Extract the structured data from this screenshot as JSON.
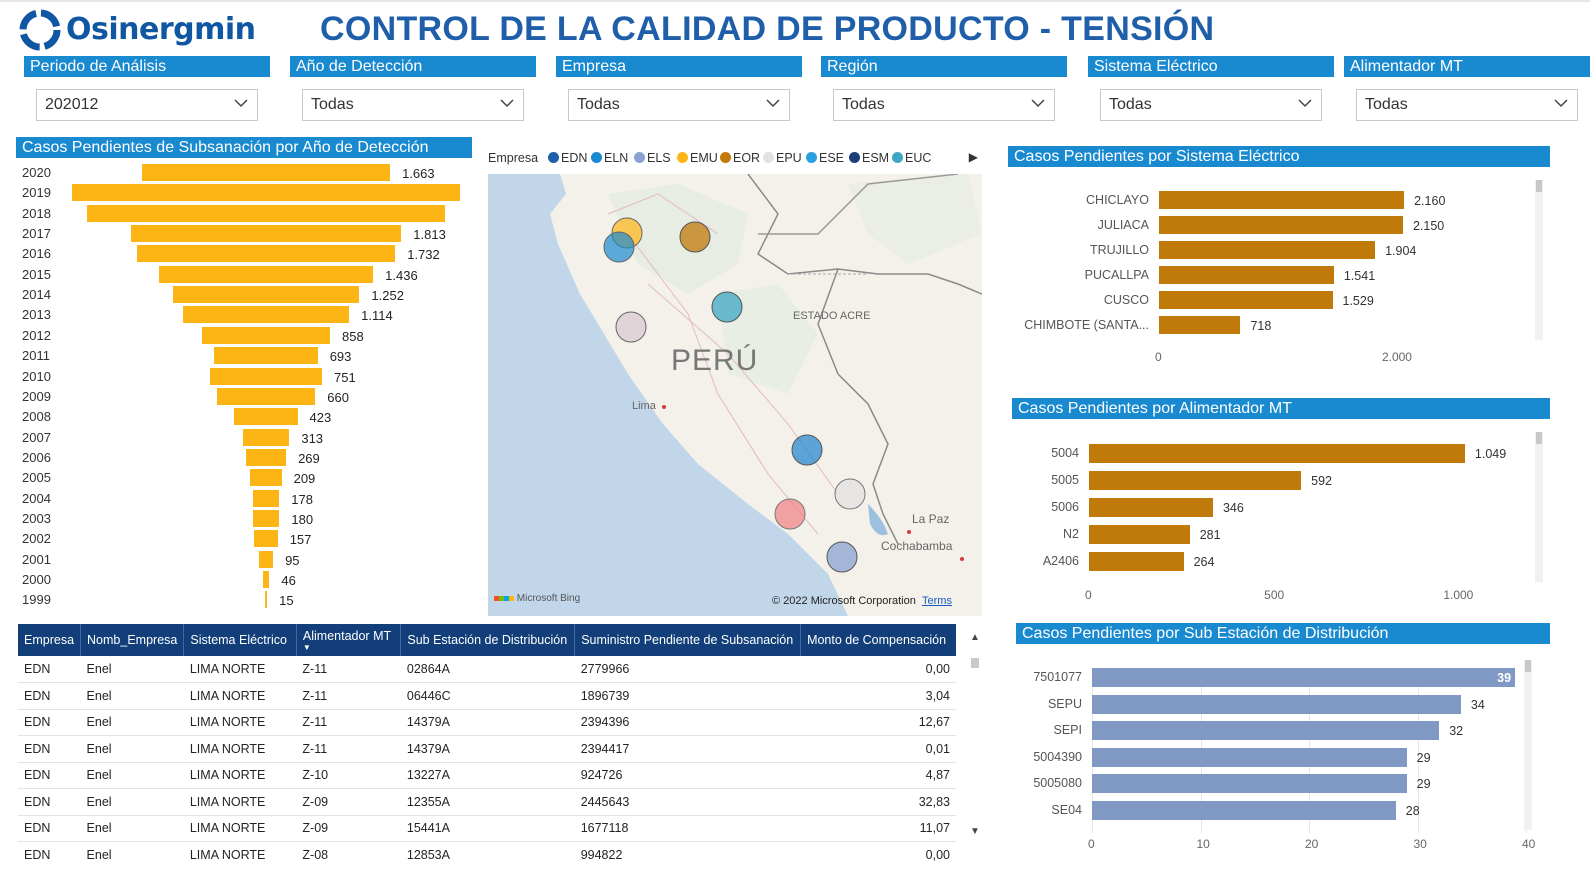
{
  "app": {
    "brand": "Osinergmin",
    "title": "CONTROL DE LA CALIDAD DE PRODUCTO - TENSIÓN"
  },
  "slicers": [
    {
      "label": "Periodo de Análisis",
      "value": "202012"
    },
    {
      "label": "Año de Detección",
      "value": "Todas"
    },
    {
      "label": "Empresa",
      "value": "Todas"
    },
    {
      "label": "Región",
      "value": "Todas"
    },
    {
      "label": "Sistema Eléctrico",
      "value": "Todas"
    },
    {
      "label": "Alimentador MT",
      "value": "Todas"
    }
  ],
  "funnel": {
    "title": "Casos Pendientes de Subsanación por Año de Detección",
    "chart_data": {
      "type": "bar",
      "title": "Casos Pendientes de Subsanación por Año de Detección",
      "categories": [
        "2020",
        "2019",
        "2018",
        "2017",
        "2016",
        "2015",
        "2014",
        "2013",
        "2012",
        "2011",
        "2010",
        "2009",
        "2008",
        "2007",
        "2006",
        "2005",
        "2004",
        "2003",
        "2002",
        "2001",
        "2000",
        "1999"
      ],
      "values": [
        1663,
        2600,
        2400,
        1813,
        1732,
        1436,
        1252,
        1114,
        858,
        693,
        751,
        660,
        423,
        313,
        269,
        209,
        178,
        180,
        157,
        95,
        46,
        15
      ],
      "labels": [
        "1.663",
        "",
        "",
        "1.813",
        "1.732",
        "1.436",
        "1.252",
        "1.114",
        "858",
        "693",
        "751",
        "660",
        "423",
        "313",
        "269",
        "209",
        "178",
        "180",
        "157",
        "95",
        "46",
        "15"
      ]
    }
  },
  "map": {
    "legend_title": "Empresa",
    "legend": [
      {
        "name": "EDN",
        "color": "#1f5ea8"
      },
      {
        "name": "ELN",
        "color": "#1a8ad0"
      },
      {
        "name": "ELS",
        "color": "#8aa2d0"
      },
      {
        "name": "EMU",
        "color": "#fdb515"
      },
      {
        "name": "EOR",
        "color": "#c07a0a"
      },
      {
        "name": "EPU",
        "color": "#e2e2e2"
      },
      {
        "name": "ESE",
        "color": "#2aa0e0"
      },
      {
        "name": "ESM",
        "color": "#1c3f7a"
      },
      {
        "name": "EUC",
        "color": "#3fa7c4"
      }
    ],
    "labels": {
      "country": "PERÚ",
      "region": "ESTADO ACRE",
      "city1": "Lima",
      "city2": "La Paz",
      "city3": "Cochabamba"
    },
    "bing": "Microsoft Bing",
    "copyright": "© 2022 Microsoft Corporation",
    "terms": "Terms"
  },
  "table": {
    "columns": [
      "Empresa",
      "Nomb_Empresa",
      "Sistema Eléctrico",
      "Alimentador MT",
      "Sub Estación de Distribución",
      "Suministro Pendiente de Subsanación",
      "Monto de Compensación"
    ],
    "rows": [
      [
        "EDN",
        "Enel",
        "LIMA NORTE",
        "Z-11",
        "02864A",
        "2779966",
        "0,00"
      ],
      [
        "EDN",
        "Enel",
        "LIMA NORTE",
        "Z-11",
        "06446C",
        "1896739",
        "3,04"
      ],
      [
        "EDN",
        "Enel",
        "LIMA NORTE",
        "Z-11",
        "14379A",
        "2394396",
        "12,67"
      ],
      [
        "EDN",
        "Enel",
        "LIMA NORTE",
        "Z-11",
        "14379A",
        "2394417",
        "0,01"
      ],
      [
        "EDN",
        "Enel",
        "LIMA NORTE",
        "Z-10",
        "13227A",
        "924726",
        "4,87"
      ],
      [
        "EDN",
        "Enel",
        "LIMA NORTE",
        "Z-09",
        "12355A",
        "2445643",
        "32,83"
      ],
      [
        "EDN",
        "Enel",
        "LIMA NORTE",
        "Z-09",
        "15441A",
        "1677118",
        "11,07"
      ],
      [
        "EDN",
        "Enel",
        "LIMA NORTE",
        "Z-08",
        "12853A",
        "994822",
        "0,00"
      ]
    ]
  },
  "sistema_chart": {
    "title": "Casos Pendientes por Sistema Eléctrico",
    "chart_data": {
      "type": "bar",
      "title": "Casos Pendientes por Sistema Eléctrico",
      "categories": [
        "CHICLAYO",
        "JULIACA",
        "TRUJILLO",
        "PUCALLPA",
        "CUSCO",
        "CHIMBOTE (SANTA..."
      ],
      "values": [
        2160,
        2150,
        1904,
        1541,
        1529,
        718
      ],
      "labels": [
        "2.160",
        "2.150",
        "1.904",
        "1.541",
        "1.529",
        "718"
      ],
      "ticks": [
        "0",
        "2.000"
      ],
      "xlim": [
        0,
        2300
      ],
      "color": "#c07a0a"
    }
  },
  "alimentador_chart": {
    "title": "Casos Pendientes por Alimentador MT",
    "chart_data": {
      "type": "bar",
      "title": "Casos Pendientes por Alimentador MT",
      "categories": [
        "5004",
        "5005",
        "5006",
        "N2",
        "A2406"
      ],
      "values": [
        1049,
        592,
        346,
        281,
        264
      ],
      "labels": [
        "1.049",
        "592",
        "346",
        "281",
        "264"
      ],
      "ticks": [
        "0",
        "500",
        "1.000"
      ],
      "xlim": [
        0,
        1200
      ],
      "color": "#c07a0a"
    }
  },
  "subestacion_chart": {
    "title": "Casos Pendientes por Sub Estación de Distribución",
    "chart_data": {
      "type": "bar",
      "title": "Casos Pendientes por Sub Estación de Distribución",
      "categories": [
        "7501077",
        "SEPU",
        "SEPI",
        "5004390",
        "5005080",
        "SE04"
      ],
      "values": [
        39,
        34,
        32,
        29,
        29,
        28
      ],
      "labels": [
        "39",
        "34",
        "32",
        "29",
        "29",
        "28"
      ],
      "ticks": [
        "0",
        "10",
        "20",
        "30",
        "40"
      ],
      "xlim": [
        0,
        40
      ],
      "color": "#7f98c4"
    }
  }
}
